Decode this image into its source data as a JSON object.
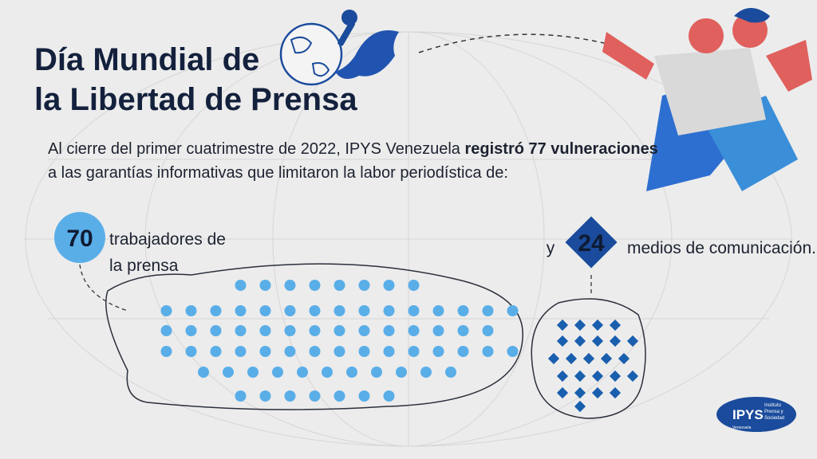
{
  "title": {
    "line1": "Día Mundial de",
    "line2": "la Libertad de Prensa"
  },
  "intro": {
    "part1": "Al cierre del primer cuatrimestre de 2022, IPYS Venezuela ",
    "bold": "registró 77 vulneraciones",
    "line2": "a las garantías informativas que limitaron la labor periodística de:"
  },
  "journalists": {
    "value": 70,
    "label_line1": "trabajadores de",
    "label_line2": "la prensa"
  },
  "media": {
    "connector": "y",
    "value": 24,
    "label": "medios de comunicación."
  },
  "logo": {
    "name": "IPYS",
    "tagline_1": "Instituto",
    "tagline_2": "Prensa y",
    "tagline_3": "Sociedad",
    "country": "Venezuela"
  }
}
